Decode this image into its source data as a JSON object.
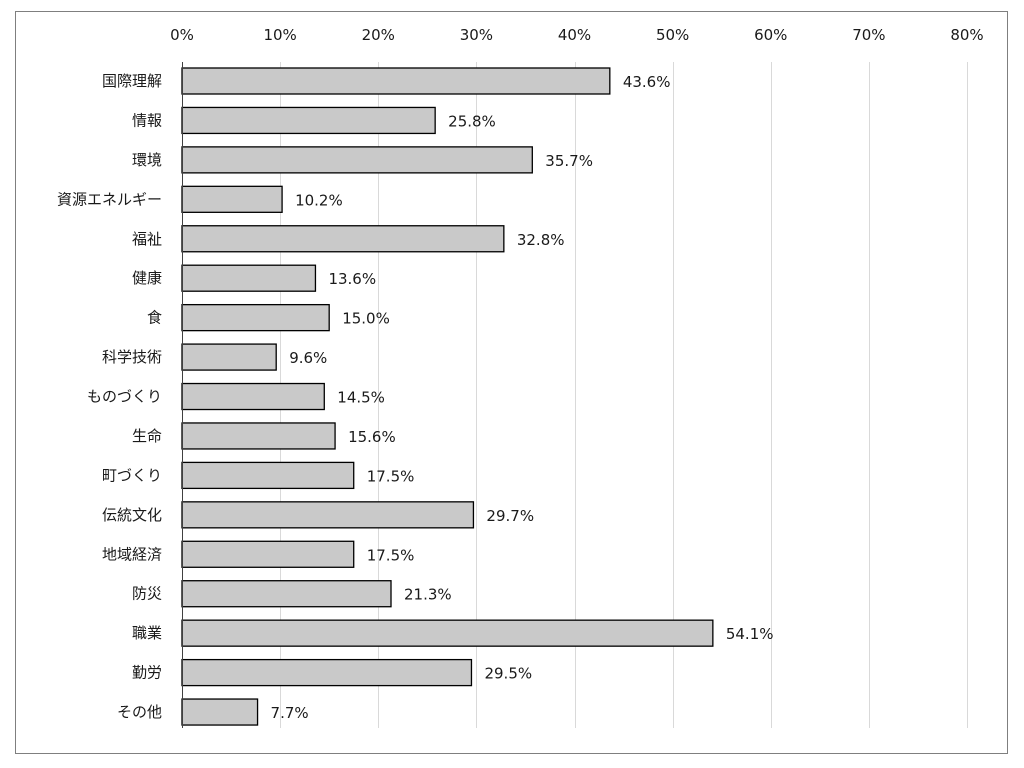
{
  "chart_data": {
    "type": "bar",
    "orientation": "horizontal",
    "categories": [
      "国際理解",
      "情報",
      "環境",
      "資源エネルギー",
      "福祉",
      "健康",
      "食",
      "科学技術",
      "ものづくり",
      "生命",
      "町づくり",
      "伝統文化",
      "地域経済",
      "防災",
      "職業",
      "勤労",
      "その他"
    ],
    "values": [
      43.6,
      25.8,
      35.7,
      10.2,
      32.8,
      13.6,
      15.0,
      9.6,
      14.5,
      15.6,
      17.5,
      29.7,
      17.5,
      21.3,
      54.1,
      29.5,
      7.7
    ],
    "data_labels": [
      "43.6%",
      "25.8%",
      "35.7%",
      "10.2%",
      "32.8%",
      "13.6%",
      "15.0%",
      "9.6%",
      "14.5%",
      "15.6%",
      "17.5%",
      "29.7%",
      "17.5%",
      "21.3%",
      "54.1%",
      "29.5%",
      "7.7%"
    ],
    "x_ticks": [
      0,
      10,
      20,
      30,
      40,
      50,
      60,
      70,
      80
    ],
    "x_tick_labels": [
      "0%",
      "10%",
      "20%",
      "30%",
      "40%",
      "50%",
      "60%",
      "70%",
      "80%"
    ],
    "xlim": [
      0,
      80
    ],
    "x_axis_position": "top",
    "grid": true,
    "legend": false,
    "colors": {
      "bar_fill": "#c9c9c9",
      "bar_stroke": "#000000",
      "grid": "#d9d9d9",
      "frame": "#7f7f7f"
    }
  }
}
